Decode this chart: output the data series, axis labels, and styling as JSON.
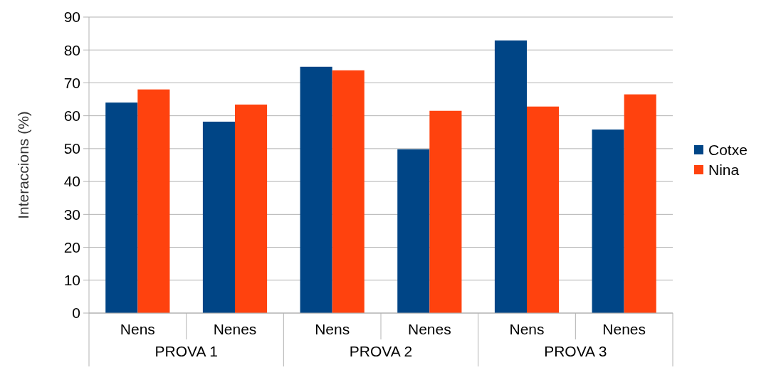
{
  "chart_data": {
    "type": "bar",
    "ylabel": "Interaccions (%)",
    "categories": [
      "Nens",
      "Nenes",
      "Nens",
      "Nenes",
      "Nens",
      "Nenes"
    ],
    "annotations": [
      "PROVA 1",
      "PROVA 2",
      "PROVA 3"
    ],
    "series": [
      {
        "name": "Cotxe",
        "color": "#004586",
        "values": [
          64,
          58.2,
          74.9,
          49.8,
          82.9,
          55.8
        ]
      },
      {
        "name": "Nina",
        "color": "#ff420e",
        "values": [
          68,
          63.4,
          73.8,
          61.5,
          62.8,
          66.5
        ]
      }
    ],
    "ylim": [
      0,
      90
    ],
    "yticks": [
      0,
      10,
      20,
      30,
      40,
      50,
      60,
      70,
      80,
      90
    ],
    "grid": "y",
    "legend": "right"
  }
}
